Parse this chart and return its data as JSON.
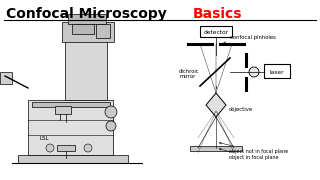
{
  "title_black": "Confocal Microscopy ",
  "title_red": "Basics",
  "bg_color": "#ffffff",
  "labels": {
    "detector": "detector",
    "confocal_pinhole": "confocal pinholes",
    "dichroic_mirror": "dichroic\nmirror",
    "objective": "objective",
    "laser": "laser",
    "object_not_focal": "object not in focal plane",
    "object_focal": "object in focal plane"
  }
}
